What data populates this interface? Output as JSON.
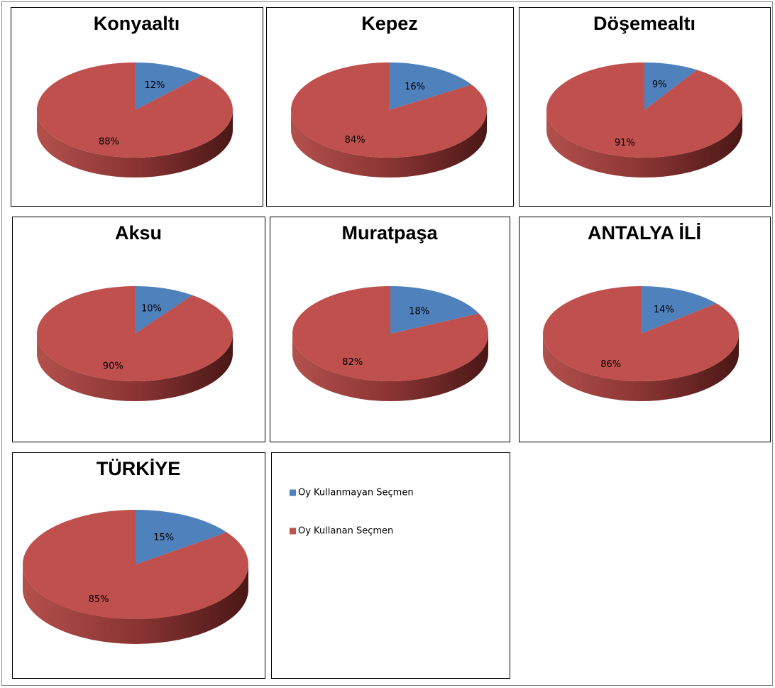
{
  "legend": {
    "series": [
      {
        "name": "Oy Kullanmayan Seçmen",
        "color": "#4f81bd"
      },
      {
        "name": "Oy Kullanan Seçmen",
        "color": "#c0504d"
      }
    ]
  },
  "chart_data": [
    {
      "type": "pie",
      "title": "Konyaaltı",
      "values": [
        12,
        88
      ],
      "value_labels": [
        "12%",
        "88%"
      ]
    },
    {
      "type": "pie",
      "title": "Kepez",
      "values": [
        16,
        84
      ],
      "value_labels": [
        "16%",
        "84%"
      ]
    },
    {
      "type": "pie",
      "title": "Döşemealtı",
      "values": [
        9,
        91
      ],
      "value_labels": [
        "9%",
        "91%"
      ]
    },
    {
      "type": "pie",
      "title": "Aksu",
      "values": [
        10,
        90
      ],
      "value_labels": [
        "10%",
        "90%"
      ]
    },
    {
      "type": "pie",
      "title": "Muratpaşa",
      "values": [
        18,
        82
      ],
      "value_labels": [
        "18%",
        "82%"
      ]
    },
    {
      "type": "pie",
      "title": "ANTALYA İLİ",
      "values": [
        14,
        86
      ],
      "value_labels": [
        "14%",
        "86%"
      ]
    },
    {
      "type": "pie",
      "title": "TÜRKİYE",
      "values": [
        15,
        85
      ],
      "value_labels": [
        "15%",
        "85%"
      ]
    }
  ]
}
